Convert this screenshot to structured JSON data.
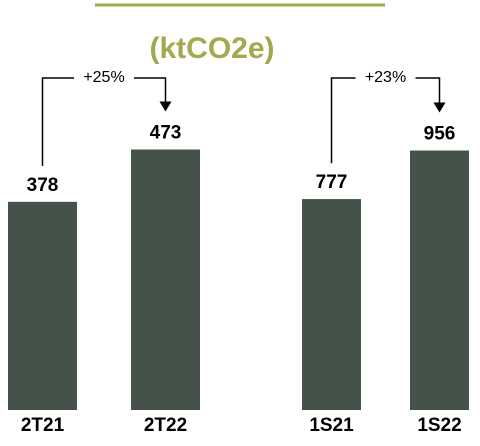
{
  "title": "(ktCO2e)",
  "chart_data": [
    {
      "type": "bar",
      "categories": [
        "2T21",
        "2T22"
      ],
      "values": [
        378,
        473
      ],
      "color": "#44524a",
      "ylim": [
        0,
        690
      ],
      "annotation": "+25%"
    },
    {
      "type": "bar",
      "categories": [
        "1S21",
        "1S22"
      ],
      "values": [
        777,
        956
      ],
      "color": "#44524a",
      "ylim": [
        0,
        1400
      ],
      "annotation": "+23%"
    }
  ]
}
